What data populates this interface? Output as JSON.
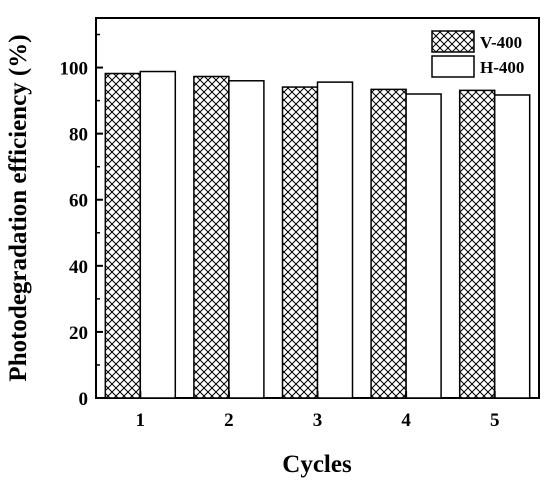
{
  "chart_data": {
    "type": "bar",
    "categories": [
      "1",
      "2",
      "3",
      "4",
      "5"
    ],
    "series": [
      {
        "name": "V-400",
        "values": [
          98.2,
          97.3,
          94.1,
          93.4,
          93.1
        ],
        "fill": "crosshatch"
      },
      {
        "name": "H-400",
        "values": [
          98.8,
          96.0,
          95.6,
          92.0,
          91.7
        ],
        "fill": "white"
      }
    ],
    "title": "",
    "xlabel": "Cycles",
    "ylabel": "Photodegradation efficiency (%)",
    "ylim": [
      0,
      115
    ],
    "yticks": [
      0,
      20,
      40,
      60,
      80,
      100
    ],
    "grid": false,
    "legend_position": "top-right",
    "colors": {
      "axis": "#000000",
      "bar_stroke": "#000000",
      "background": "#ffffff"
    }
  }
}
